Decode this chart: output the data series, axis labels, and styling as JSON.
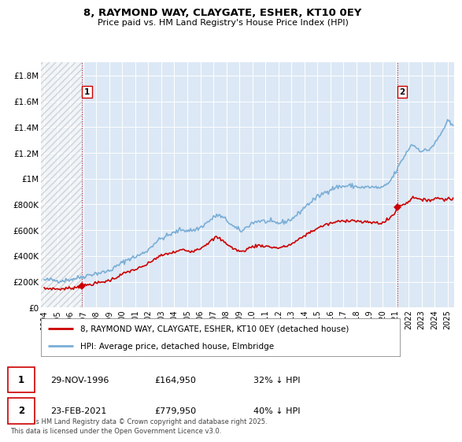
{
  "title": "8, RAYMOND WAY, CLAYGATE, ESHER, KT10 0EY",
  "subtitle": "Price paid vs. HM Land Registry's House Price Index (HPI)",
  "ylim": [
    0,
    1900000
  ],
  "xlim_start": 1993.75,
  "xlim_end": 2025.5,
  "yticks": [
    0,
    200000,
    400000,
    600000,
    800000,
    1000000,
    1200000,
    1400000,
    1600000,
    1800000
  ],
  "ytick_labels": [
    "£0",
    "£200K",
    "£400K",
    "£600K",
    "£800K",
    "£1M",
    "£1.2M",
    "£1.4M",
    "£1.6M",
    "£1.8M"
  ],
  "xticks": [
    1994,
    1995,
    1996,
    1997,
    1998,
    1999,
    2000,
    2001,
    2002,
    2003,
    2004,
    2005,
    2006,
    2007,
    2008,
    2009,
    2010,
    2011,
    2012,
    2013,
    2014,
    2015,
    2016,
    2017,
    2018,
    2019,
    2020,
    2021,
    2022,
    2023,
    2024,
    2025
  ],
  "transaction1_x": 1996.917,
  "transaction1_y": 164950,
  "transaction2_x": 2021.125,
  "transaction2_y": 779950,
  "legend_red": "8, RAYMOND WAY, CLAYGATE, ESHER, KT10 0EY (detached house)",
  "legend_blue": "HPI: Average price, detached house, Elmbridge",
  "red_color": "#cc0000",
  "blue_color": "#7aaed6",
  "background_color": "#dce8f5",
  "chart_bg": "#dce8f5",
  "fn1_date": "29-NOV-1996",
  "fn1_price": "£164,950",
  "fn1_hpi": "32% ↓ HPI",
  "fn2_date": "23-FEB-2021",
  "fn2_price": "£779,950",
  "fn2_hpi": "40% ↓ HPI",
  "footnote3": "Contains HM Land Registry data © Crown copyright and database right 2025.",
  "footnote4": "This data is licensed under the Open Government Licence v3.0."
}
